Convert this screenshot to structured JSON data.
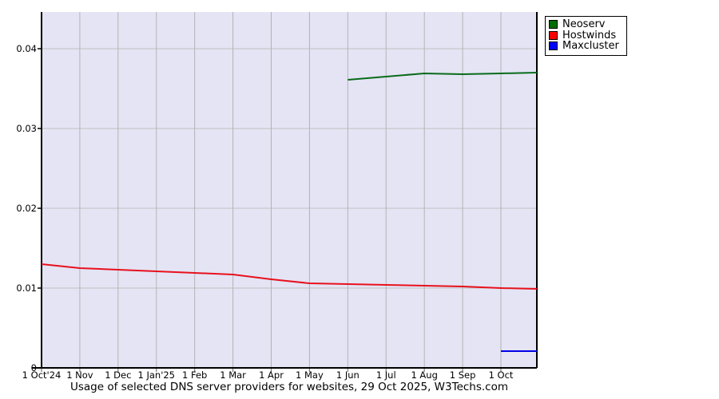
{
  "title": "Usage of selected DNS server providers for websites, 29 Oct 2025, W3Techs.com",
  "legend": {
    "items": [
      {
        "label": "Neoserv",
        "color": "#006e00"
      },
      {
        "label": "Hostwinds",
        "color": "#ff0000"
      },
      {
        "label": "Maxcluster",
        "color": "#0000ff"
      }
    ]
  },
  "chart_data": {
    "type": "line",
    "title": "Usage of selected DNS server providers for websites, 29 Oct 2025, W3Techs.com",
    "xlabel": "",
    "ylabel": "",
    "x_tick_labels": [
      "1 Oct'24",
      "1 Nov",
      "1 Dec",
      "1 Jan'25",
      "1 Feb",
      "1 Mar",
      "1 Apr",
      "1 May",
      "1 Jun",
      "1 Jul",
      "1 Aug",
      "1 Sep",
      "1 Oct"
    ],
    "y_tick_labels": [
      "0",
      "0.01",
      "0.02",
      "0.03",
      "0.04"
    ],
    "ylim": [
      0,
      0.0446
    ],
    "x_months_range": [
      0,
      12.94
    ],
    "grid": true,
    "legend_position": "outside-top-right",
    "plot_bg": "#e4e4f5",
    "grid_color_v": "#b3b3b3",
    "grid_color_h": "#c0c0c0",
    "axis_color": "#000000",
    "series": [
      {
        "name": "Neoserv",
        "color": "#0a6b1a",
        "points": [
          [
            8,
            0.0361
          ],
          [
            9,
            0.0365
          ],
          [
            10,
            0.0369
          ],
          [
            11,
            0.0368
          ],
          [
            12,
            0.0369
          ],
          [
            12.94,
            0.037
          ]
        ]
      },
      {
        "name": "Hostwinds",
        "color": "#e8111c",
        "points": [
          [
            0,
            0.013
          ],
          [
            1,
            0.0125
          ],
          [
            2,
            0.0123
          ],
          [
            3,
            0.0121
          ],
          [
            4,
            0.0119
          ],
          [
            5,
            0.0117
          ],
          [
            6,
            0.0111
          ],
          [
            7,
            0.0106
          ],
          [
            8,
            0.0105
          ],
          [
            9,
            0.0104
          ],
          [
            10,
            0.0103
          ],
          [
            11,
            0.0102
          ],
          [
            12,
            0.01
          ],
          [
            12.94,
            0.0099
          ]
        ]
      },
      {
        "name": "Maxcluster",
        "color": "#0000e4",
        "points": [
          [
            12,
            0.0021
          ],
          [
            12.94,
            0.0021
          ]
        ]
      }
    ]
  }
}
